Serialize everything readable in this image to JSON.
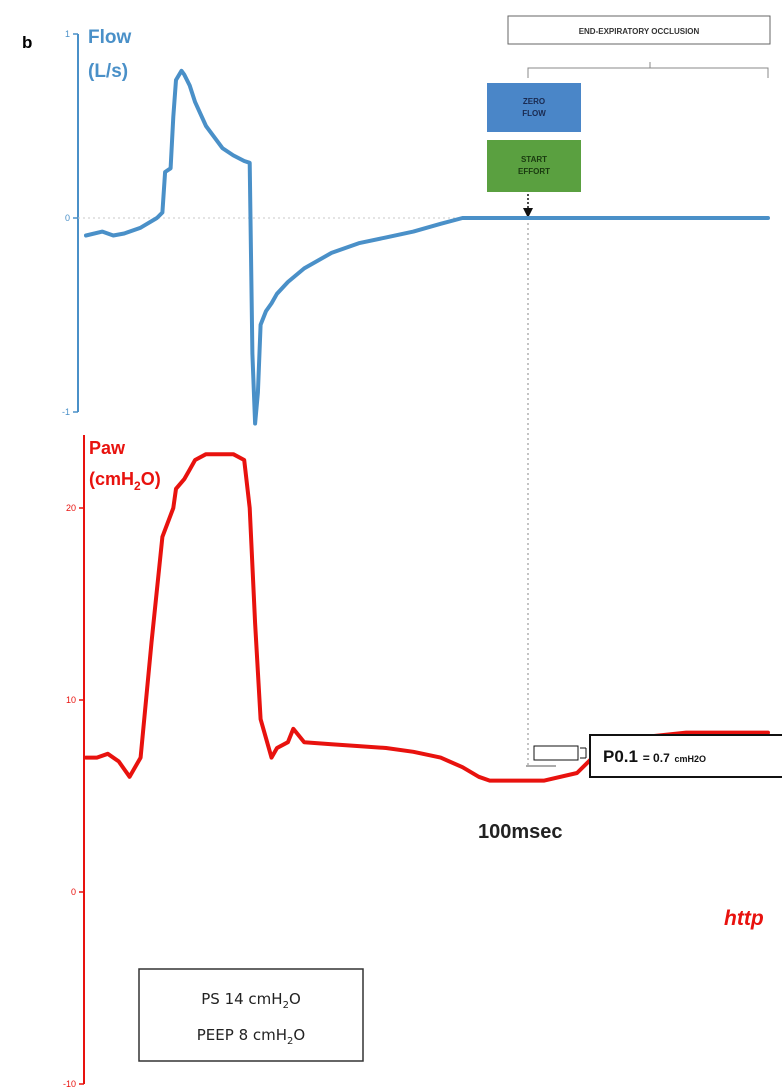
{
  "panel_label": "b",
  "colors": {
    "flow": "#4a90c8",
    "paw": "#e8120e",
    "zero_flow_box": "#4a86c8",
    "start_effort_box": "#5aa040",
    "link": "#e8120e"
  },
  "chart_data": [
    {
      "type": "line",
      "name": "flow",
      "ylabel_lines": [
        "Flow",
        "(L/s)"
      ],
      "ylim": [
        -1,
        1
      ],
      "yticks": [
        "1",
        "0",
        "-1"
      ],
      "x_units": "sec",
      "xlim": [
        0,
        1.25
      ],
      "series": [
        {
          "name": "Flow",
          "x": [
            0,
            0.03,
            0.05,
            0.07,
            0.1,
            0.13,
            0.14,
            0.145,
            0.155,
            0.16,
            0.165,
            0.175,
            0.18,
            0.19,
            0.2,
            0.22,
            0.25,
            0.27,
            0.29,
            0.3,
            0.305,
            0.31,
            0.315,
            0.32,
            0.33,
            0.34,
            0.35,
            0.37,
            0.4,
            0.45,
            0.5,
            0.55,
            0.6,
            0.65,
            0.69,
            0.695,
            1.25
          ],
          "y": [
            -0.09,
            -0.07,
            -0.09,
            -0.08,
            -0.05,
            0.0,
            0.03,
            0.25,
            0.27,
            0.55,
            0.75,
            0.8,
            0.78,
            0.72,
            0.63,
            0.5,
            0.38,
            0.34,
            0.31,
            0.3,
            -0.7,
            -1.06,
            -0.9,
            -0.55,
            -0.48,
            -0.44,
            -0.39,
            -0.33,
            -0.26,
            -0.18,
            -0.13,
            -0.1,
            -0.07,
            -0.03,
            0.0,
            0.0,
            0.0
          ]
        }
      ]
    },
    {
      "type": "line",
      "name": "paw",
      "ylabel_lines": [
        "Paw",
        "(cmH2O)"
      ],
      "ylim": [
        -10,
        24
      ],
      "yticks": [
        "20",
        "10",
        "0",
        "-10"
      ],
      "x_units": "sec",
      "xlim": [
        0,
        1.25
      ],
      "series": [
        {
          "name": "Paw",
          "x": [
            0,
            0.02,
            0.04,
            0.06,
            0.08,
            0.1,
            0.12,
            0.14,
            0.16,
            0.165,
            0.18,
            0.19,
            0.2,
            0.22,
            0.23,
            0.24,
            0.27,
            0.29,
            0.3,
            0.31,
            0.32,
            0.34,
            0.35,
            0.37,
            0.38,
            0.4,
            0.45,
            0.5,
            0.55,
            0.6,
            0.65,
            0.69,
            0.72,
            0.74,
            0.77,
            0.8,
            0.84,
            0.9,
            0.95,
            1.0,
            1.1,
            1.25
          ],
          "y": [
            7.0,
            7.0,
            7.2,
            6.8,
            6.0,
            7.0,
            13.0,
            18.5,
            20.0,
            21.0,
            21.5,
            22.0,
            22.5,
            22.8,
            22.8,
            22.8,
            22.8,
            22.5,
            20.0,
            14.0,
            9.0,
            7.0,
            7.5,
            7.8,
            8.5,
            7.8,
            7.7,
            7.6,
            7.5,
            7.3,
            7.0,
            6.5,
            6.0,
            5.8,
            5.8,
            5.8,
            5.8,
            6.2,
            7.6,
            8.0,
            8.3,
            8.3
          ]
        }
      ]
    }
  ],
  "annotations": {
    "occlusion_label": "END-EXPIRATORY OCCLUSION",
    "zero_flow_lines": [
      "ZERO",
      "FLOW"
    ],
    "start_effort_lines": [
      "START",
      "EFFORT"
    ],
    "p01_main": "P0.1",
    "p01_value": "= 0.7",
    "p01_unit": "cmH2O",
    "time_label": "100msec",
    "link_fragment": "http",
    "settings": {
      "ps": {
        "label": "PS 14 cmH",
        "sub": "2",
        "tail": "O"
      },
      "peep": {
        "label": "PEEP 8 cmH",
        "sub": "2",
        "tail": "O"
      }
    }
  }
}
